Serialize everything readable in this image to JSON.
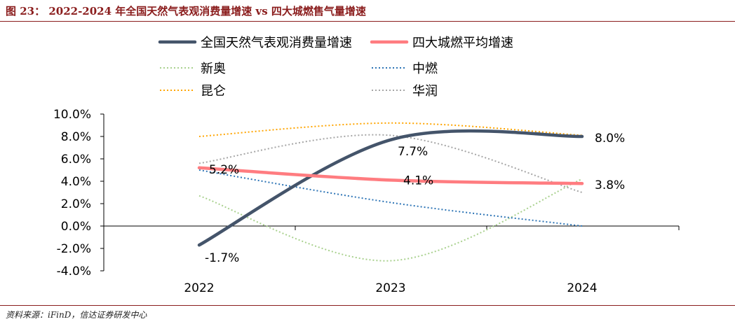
{
  "header": {
    "title": "图 23：  2022-2024 年全国天然气表观消费量增速 vs 四大城燃售气量增速"
  },
  "footer": {
    "source": "资料来源：iFinD，信达证券研发中心"
  },
  "colors": {
    "national": "#44546a",
    "average": "#ff7c80",
    "xinao": "#a9d18e",
    "zhongran": "#2e75b6",
    "kunlun": "#ffa500",
    "huarun": "#a6a6a6",
    "title": "#8a1c1c"
  },
  "chart_data": {
    "type": "line",
    "x": [
      "2022",
      "2023",
      "2024"
    ],
    "ylim": [
      -4,
      10
    ],
    "yticks": [
      "-4.0%",
      "-2.0%",
      "0.0%",
      "2.0%",
      "4.0%",
      "6.0%",
      "8.0%",
      "10.0%"
    ],
    "grid": false,
    "legend_position": "top",
    "series": [
      {
        "key": "national",
        "name": "全国天然气表观消费量增速",
        "values": [
          -1.7,
          7.7,
          8.0
        ],
        "style": "solid-thick",
        "labels": [
          "-1.7%",
          "7.7%",
          "8.0%"
        ]
      },
      {
        "key": "average",
        "name": "四大城燃平均增速",
        "values": [
          5.2,
          4.1,
          3.8
        ],
        "style": "solid-thick",
        "labels": [
          "5.2%",
          "4.1%",
          "3.8%"
        ]
      },
      {
        "key": "xinao",
        "name": "新奥",
        "values": [
          2.7,
          -3.1,
          4.2
        ],
        "style": "dotted"
      },
      {
        "key": "zhongran",
        "name": "中燃",
        "values": [
          5.0,
          2.1,
          0.0
        ],
        "style": "dotted"
      },
      {
        "key": "kunlun",
        "name": "昆仑",
        "values": [
          8.0,
          9.2,
          8.1
        ],
        "style": "dotted"
      },
      {
        "key": "huarun",
        "name": "华润",
        "values": [
          5.6,
          8.1,
          3.0
        ],
        "style": "dotted"
      }
    ]
  }
}
